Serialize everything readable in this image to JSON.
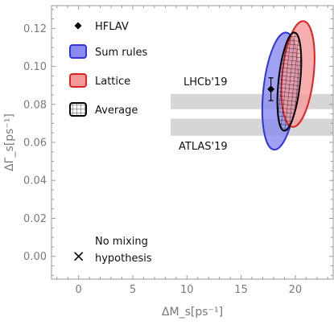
{
  "chart_data": {
    "type": "scatter",
    "xlabel": "ΔM_s[ps⁻¹]",
    "ylabel": "ΔΓ_s[ps⁻¹]",
    "xlim": [
      -2.5,
      23.5
    ],
    "ylim": [
      -0.012,
      0.132
    ],
    "x_ticks": [
      0,
      5,
      10,
      15,
      20
    ],
    "y_ticks": [
      0.0,
      0.02,
      0.04,
      0.06,
      0.08,
      0.1,
      0.12
    ],
    "x_tick_labels": [
      "0",
      "5",
      "10",
      "15",
      "20"
    ],
    "y_tick_labels": [
      "0.00",
      "0.02",
      "0.04",
      "0.06",
      "0.08",
      "0.10",
      "0.12"
    ],
    "grid": false,
    "legend_position": "top-left",
    "bands": [
      {
        "label": "LHCb'19",
        "y_range": [
          0.0775,
          0.0855
        ],
        "x_start": 8.5
      },
      {
        "label": "ATLAS'19",
        "y_range": [
          0.0635,
          0.0725
        ],
        "x_start": 8.5
      }
    ],
    "series": [
      {
        "name": "HFLAV",
        "type": "point",
        "x": 17.75,
        "y": 0.088,
        "y_error": 0.006,
        "color": "#000000"
      },
      {
        "name": "Sum rules",
        "type": "ellipse",
        "center": [
          18.6,
          0.087
        ],
        "semi_axis_x": 1.55,
        "semi_axis_y": 0.031,
        "rotation_deg": 6,
        "color": "#3333dd",
        "fill": "#8a8af0"
      },
      {
        "name": "Lattice",
        "type": "ellipse",
        "center": [
          20.25,
          0.096
        ],
        "semi_axis_x": 1.45,
        "semi_axis_y": 0.028,
        "rotation_deg": 6,
        "color": "#dd2222",
        "fill": "#f49a9a"
      },
      {
        "name": "Average",
        "type": "ellipse",
        "center": [
          19.45,
          0.092
        ],
        "semi_axis_x": 1.0,
        "semi_axis_y": 0.026,
        "rotation_deg": 6,
        "color": "#000000",
        "fill": "hatch"
      }
    ],
    "annotations": [
      {
        "text": [
          "No mixing",
          "hypothesis"
        ],
        "marker": "x",
        "x": 0,
        "y": 0
      }
    ]
  }
}
